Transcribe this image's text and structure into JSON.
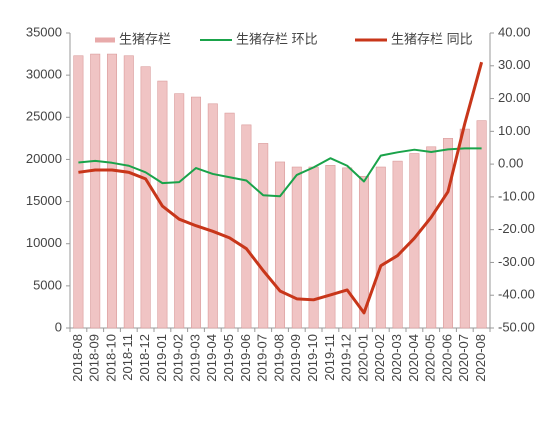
{
  "chart_data": {
    "type": "bar-line",
    "categories": [
      "2018-08",
      "2018-09",
      "2018-10",
      "2018-11",
      "2018-12",
      "2019-01",
      "2019-02",
      "2019-03",
      "2019-04",
      "2019-05",
      "2019-06",
      "2019-07",
      "2019-08",
      "2019-09",
      "2019-10",
      "2019-11",
      "2019-12",
      "2020-01",
      "2020-02",
      "2020-03",
      "2020-04",
      "2020-05",
      "2020-06",
      "2020-07",
      "2020-08"
    ],
    "series": [
      {
        "name": "生猪存栏",
        "type": "bar",
        "color": "#f0c4c4",
        "values": [
          32300,
          32500,
          32500,
          32300,
          31000,
          29300,
          27800,
          27400,
          26600,
          25500,
          24100,
          21900,
          19700,
          19100,
          19100,
          19300,
          19000,
          18000,
          19100,
          19800,
          20700,
          21500,
          22500,
          23600,
          24600
        ]
      },
      {
        "name": "生猪存栏 环比",
        "type": "line",
        "axis": "y2",
        "color": "#1aa34a",
        "values": [
          0.5,
          1.0,
          0.4,
          -0.5,
          -2.5,
          -5.8,
          -5.5,
          -1.2,
          -3.0,
          -4.0,
          -5.0,
          -9.5,
          -9.8,
          -3.3,
          -1.0,
          1.8,
          -0.5,
          -5.3,
          2.6,
          3.6,
          4.4,
          3.7,
          4.5,
          4.8,
          4.8
        ]
      },
      {
        "name": "生猪存栏 同比",
        "type": "line",
        "axis": "y2",
        "color": "#c8361a",
        "values": [
          -2.5,
          -1.8,
          -1.8,
          -2.5,
          -4.5,
          -12.8,
          -16.8,
          -18.8,
          -20.5,
          -22.5,
          -25.8,
          -32.5,
          -38.7,
          -41.1,
          -41.4,
          -39.9,
          -38.4,
          -45.4,
          -31.0,
          -27.9,
          -22.6,
          -16.2,
          -8.4,
          12.4,
          31.1
        ]
      }
    ],
    "ylim": [
      0,
      35000
    ],
    "yticks": [
      0,
      5000,
      10000,
      15000,
      20000,
      25000,
      30000,
      35000
    ],
    "y2lim": [
      -50,
      40
    ],
    "y2ticks": [
      {
        "value": -50,
        "label": "-50.00"
      },
      {
        "value": -40,
        "label": "-40.00"
      },
      {
        "value": -30,
        "label": "-30.00"
      },
      {
        "value": -20,
        "label": "-20.00"
      },
      {
        "value": -10,
        "label": "-10.00"
      },
      {
        "value": 0,
        "label": "0.00"
      },
      {
        "value": 10,
        "label": "10.00"
      },
      {
        "value": 20,
        "label": "20.00"
      },
      {
        "value": 30,
        "label": "30.00"
      },
      {
        "value": 40,
        "label": "40.00"
      }
    ],
    "grid": false
  }
}
